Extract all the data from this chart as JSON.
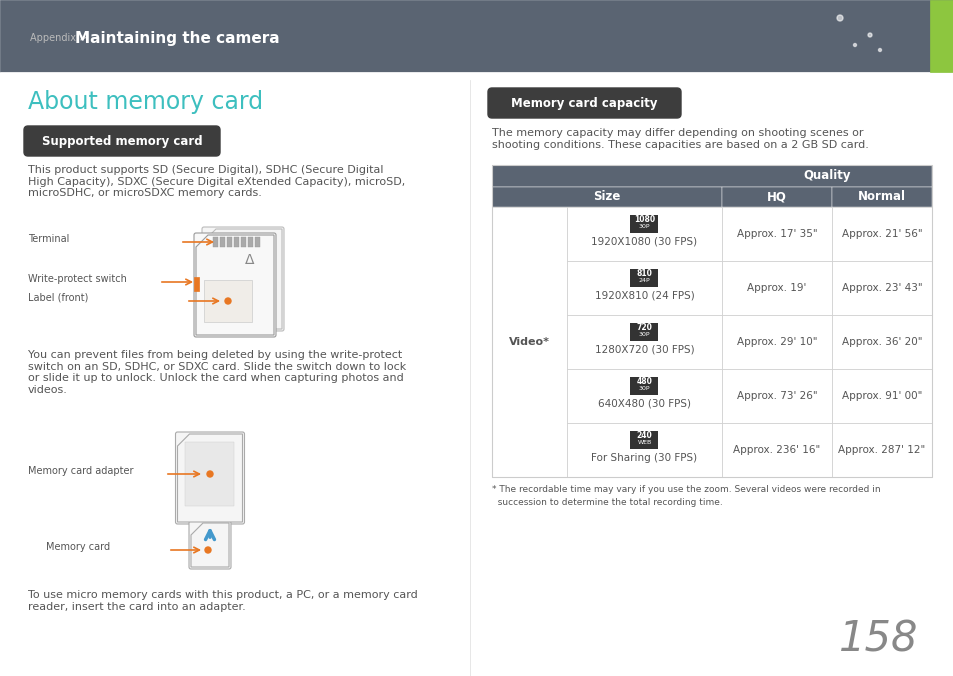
{
  "page_bg": "#ffffff",
  "header_bg": "#5a6472",
  "green_bar_color": "#8dc63f",
  "title_color": "#3dbfbf",
  "title_text": "About memory card",
  "section1_badge_bg": "#3d3d3d",
  "section1_badge_text": "Supported memory card",
  "section1_badge_text_color": "#ffffff",
  "body_text_color": "#555555",
  "label_color": "#555555",
  "arrow_color": "#e87722",
  "terminal_label": "Terminal",
  "write_protect_label": "Write-protect switch",
  "label_front_label": "Label (front)",
  "body1": "This product supports SD (Secure Digital), SDHC (Secure Digital\nHigh Capacity), SDXC (Secure Digital eXtended Capacity), microSD,\nmicroSDHC, or microSDXC memory cards.",
  "body2": "You can prevent files from being deleted by using the write-protect\nswitch on an SD, SDHC, or SDXC card. Slide the switch down to lock\nor slide it up to unlock. Unlock the card when capturing photos and\nvideos.",
  "adapter_label": "Memory card adapter",
  "card_label": "Memory card",
  "body3": "To use micro memory cards with this product, a PC, or a memory card\nreader, insert the card into an adapter.",
  "section2_badge_bg": "#3d3d3d",
  "section2_badge_text": "Memory card capacity",
  "section2_badge_text_color": "#ffffff",
  "cap_intro": "The memory capacity may differ depending on shooting scenes or\nshooting conditions. These capacities are based on a 2 GB SD card.",
  "table_header_bg": "#5a6472",
  "table_border_color": "#cccccc",
  "table_rows": [
    {
      "icon_top": "1080",
      "icon_bot": "30P",
      "size_label": "1920X1080 (30 FPS)",
      "hq": "Approx. 17' 35\"",
      "normal": "Approx. 21' 56\""
    },
    {
      "icon_top": "810",
      "icon_bot": "24P",
      "size_label": "1920X810 (24 FPS)",
      "hq": "Approx. 19'",
      "normal": "Approx. 23' 43\""
    },
    {
      "icon_top": "720",
      "icon_bot": "30P",
      "size_label": "1280X720 (30 FPS)",
      "hq": "Approx. 29' 10\"",
      "normal": "Approx. 36' 20\""
    },
    {
      "icon_top": "480",
      "icon_bot": "30P",
      "size_label": "640X480 (30 FPS)",
      "hq": "Approx. 73' 26\"",
      "normal": "Approx. 91' 00\""
    },
    {
      "icon_top": "240",
      "icon_bot": "WEB",
      "size_label": "For Sharing (30 FPS)",
      "hq": "Approx. 236' 16\"",
      "normal": "Approx. 287' 12\""
    }
  ],
  "video_label": "Video*",
  "footnote_line1": "* The recordable time may vary if you use the zoom. Several videos were recorded in",
  "footnote_line2": "  succession to determine the total recording time.",
  "page_number": "158",
  "appendix_small": "Appendix > ",
  "appendix_big": "Maintaining the camera"
}
